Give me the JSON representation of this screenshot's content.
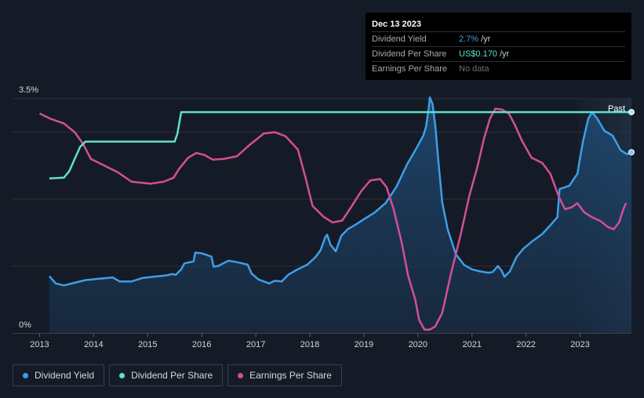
{
  "chart_data": {
    "type": "line",
    "title": "",
    "y_axis": {
      "ylim": [
        0,
        3.5
      ],
      "top_label": "3.5%",
      "bottom_label": "0%"
    },
    "x_axis": {
      "xlim": [
        2012.5,
        2023.95
      ],
      "ticks": [
        "2013",
        "2014",
        "2015",
        "2016",
        "2017",
        "2018",
        "2019",
        "2020",
        "2021",
        "2022",
        "2023"
      ]
    },
    "forecast_start": 2022.95,
    "past_label": "Past",
    "series": [
      {
        "name": "Dividend Yield",
        "color": "#3d9fe8",
        "unit": "%",
        "points": [
          [
            2013.18,
            0.85
          ],
          [
            2013.3,
            0.74
          ],
          [
            2013.45,
            0.71
          ],
          [
            2013.65,
            0.75
          ],
          [
            2013.85,
            0.79
          ],
          [
            2014.1,
            0.81
          ],
          [
            2014.35,
            0.83
          ],
          [
            2014.48,
            0.77
          ],
          [
            2014.7,
            0.77
          ],
          [
            2014.9,
            0.82
          ],
          [
            2015.1,
            0.84
          ],
          [
            2015.35,
            0.86
          ],
          [
            2015.45,
            0.88
          ],
          [
            2015.52,
            0.87
          ],
          [
            2015.62,
            0.95
          ],
          [
            2015.68,
            1.04
          ],
          [
            2015.85,
            1.07
          ],
          [
            2015.88,
            1.2
          ],
          [
            2016.0,
            1.19
          ],
          [
            2016.18,
            1.14
          ],
          [
            2016.22,
            0.99
          ],
          [
            2016.3,
            1.0
          ],
          [
            2016.42,
            1.05
          ],
          [
            2016.5,
            1.08
          ],
          [
            2016.7,
            1.05
          ],
          [
            2016.85,
            1.02
          ],
          [
            2016.92,
            0.89
          ],
          [
            2017.05,
            0.8
          ],
          [
            2017.25,
            0.74
          ],
          [
            2017.35,
            0.78
          ],
          [
            2017.48,
            0.77
          ],
          [
            2017.6,
            0.87
          ],
          [
            2017.75,
            0.94
          ],
          [
            2017.95,
            1.02
          ],
          [
            2018.1,
            1.13
          ],
          [
            2018.2,
            1.24
          ],
          [
            2018.28,
            1.42
          ],
          [
            2018.32,
            1.47
          ],
          [
            2018.38,
            1.32
          ],
          [
            2018.48,
            1.22
          ],
          [
            2018.58,
            1.45
          ],
          [
            2018.7,
            1.55
          ],
          [
            2018.85,
            1.62
          ],
          [
            2019.0,
            1.7
          ],
          [
            2019.2,
            1.8
          ],
          [
            2019.4,
            1.94
          ],
          [
            2019.6,
            2.18
          ],
          [
            2019.8,
            2.52
          ],
          [
            2019.95,
            2.73
          ],
          [
            2020.1,
            2.95
          ],
          [
            2020.15,
            3.08
          ],
          [
            2020.2,
            3.36
          ],
          [
            2020.22,
            3.52
          ],
          [
            2020.27,
            3.42
          ],
          [
            2020.32,
            3.1
          ],
          [
            2020.38,
            2.55
          ],
          [
            2020.45,
            1.95
          ],
          [
            2020.55,
            1.55
          ],
          [
            2020.7,
            1.18
          ],
          [
            2020.85,
            1.02
          ],
          [
            2021.0,
            0.95
          ],
          [
            2021.15,
            0.92
          ],
          [
            2021.3,
            0.9
          ],
          [
            2021.38,
            0.91
          ],
          [
            2021.48,
            1.0
          ],
          [
            2021.55,
            0.93
          ],
          [
            2021.6,
            0.84
          ],
          [
            2021.7,
            0.92
          ],
          [
            2021.82,
            1.13
          ],
          [
            2021.95,
            1.26
          ],
          [
            2022.1,
            1.36
          ],
          [
            2022.3,
            1.48
          ],
          [
            2022.45,
            1.61
          ],
          [
            2022.58,
            1.73
          ],
          [
            2022.6,
            1.94
          ],
          [
            2022.62,
            2.15
          ],
          [
            2022.8,
            2.2
          ],
          [
            2022.95,
            2.38
          ],
          [
            2023.05,
            2.85
          ],
          [
            2023.15,
            3.2
          ],
          [
            2023.22,
            3.3
          ],
          [
            2023.32,
            3.2
          ],
          [
            2023.45,
            3.02
          ],
          [
            2023.6,
            2.95
          ],
          [
            2023.75,
            2.73
          ],
          [
            2023.87,
            2.67
          ],
          [
            2023.95,
            2.7
          ]
        ]
      },
      {
        "name": "Dividend Per Share",
        "color": "#5fe0c9",
        "unit": "US$",
        "points": [
          [
            2013.18,
            2.31
          ],
          [
            2013.45,
            2.32
          ],
          [
            2013.55,
            2.42
          ],
          [
            2013.75,
            2.78
          ],
          [
            2013.85,
            2.86
          ],
          [
            2015.0,
            2.86
          ],
          [
            2015.5,
            2.86
          ],
          [
            2015.55,
            2.98
          ],
          [
            2015.62,
            3.3
          ],
          [
            2023.95,
            3.3
          ]
        ]
      },
      {
        "name": "Earnings Per Share",
        "color": "#d34f97",
        "unit": "US$",
        "points": [
          [
            2013.0,
            3.28
          ],
          [
            2013.2,
            3.2
          ],
          [
            2013.45,
            3.13
          ],
          [
            2013.65,
            3.0
          ],
          [
            2013.8,
            2.83
          ],
          [
            2013.95,
            2.6
          ],
          [
            2014.2,
            2.5
          ],
          [
            2014.45,
            2.4
          ],
          [
            2014.7,
            2.26
          ],
          [
            2015.05,
            2.23
          ],
          [
            2015.3,
            2.26
          ],
          [
            2015.48,
            2.32
          ],
          [
            2015.58,
            2.45
          ],
          [
            2015.75,
            2.62
          ],
          [
            2015.9,
            2.69
          ],
          [
            2016.05,
            2.66
          ],
          [
            2016.2,
            2.59
          ],
          [
            2016.4,
            2.6
          ],
          [
            2016.65,
            2.64
          ],
          [
            2016.9,
            2.82
          ],
          [
            2017.15,
            2.98
          ],
          [
            2017.35,
            3.0
          ],
          [
            2017.55,
            2.94
          ],
          [
            2017.78,
            2.74
          ],
          [
            2017.92,
            2.32
          ],
          [
            2018.05,
            1.9
          ],
          [
            2018.25,
            1.74
          ],
          [
            2018.42,
            1.65
          ],
          [
            2018.6,
            1.68
          ],
          [
            2018.78,
            1.9
          ],
          [
            2018.95,
            2.12
          ],
          [
            2019.12,
            2.28
          ],
          [
            2019.3,
            2.3
          ],
          [
            2019.42,
            2.18
          ],
          [
            2019.55,
            1.85
          ],
          [
            2019.7,
            1.35
          ],
          [
            2019.82,
            0.85
          ],
          [
            2019.95,
            0.5
          ],
          [
            2020.02,
            0.2
          ],
          [
            2020.12,
            0.05
          ],
          [
            2020.22,
            0.05
          ],
          [
            2020.32,
            0.1
          ],
          [
            2020.45,
            0.3
          ],
          [
            2020.6,
            0.85
          ],
          [
            2020.8,
            1.5
          ],
          [
            2020.95,
            2.05
          ],
          [
            2021.1,
            2.48
          ],
          [
            2021.22,
            2.9
          ],
          [
            2021.33,
            3.2
          ],
          [
            2021.43,
            3.35
          ],
          [
            2021.55,
            3.34
          ],
          [
            2021.68,
            3.28
          ],
          [
            2021.8,
            3.1
          ],
          [
            2021.92,
            2.88
          ],
          [
            2022.1,
            2.62
          ],
          [
            2022.3,
            2.54
          ],
          [
            2022.45,
            2.38
          ],
          [
            2022.6,
            2.05
          ],
          [
            2022.72,
            1.85
          ],
          [
            2022.85,
            1.88
          ],
          [
            2022.95,
            1.94
          ],
          [
            2023.08,
            1.8
          ],
          [
            2023.22,
            1.73
          ],
          [
            2023.38,
            1.67
          ],
          [
            2023.52,
            1.58
          ],
          [
            2023.62,
            1.55
          ],
          [
            2023.72,
            1.65
          ],
          [
            2023.8,
            1.85
          ],
          [
            2023.85,
            1.94
          ]
        ]
      }
    ]
  },
  "tooltip": {
    "date": "Dec 13 2023",
    "rows": [
      {
        "label": "Dividend Yield",
        "value": "2.7%",
        "unit": "/yr"
      },
      {
        "label": "Dividend Per Share",
        "value": "US$0.170",
        "unit": "/yr"
      },
      {
        "label": "Earnings Per Share",
        "value": "No data",
        "unit": ""
      }
    ]
  },
  "legend": [
    {
      "label": "Dividend Yield",
      "color": "#3d9fe8"
    },
    {
      "label": "Dividend Per Share",
      "color": "#5fe0c9"
    },
    {
      "label": "Earnings Per Share",
      "color": "#d34f97"
    }
  ]
}
